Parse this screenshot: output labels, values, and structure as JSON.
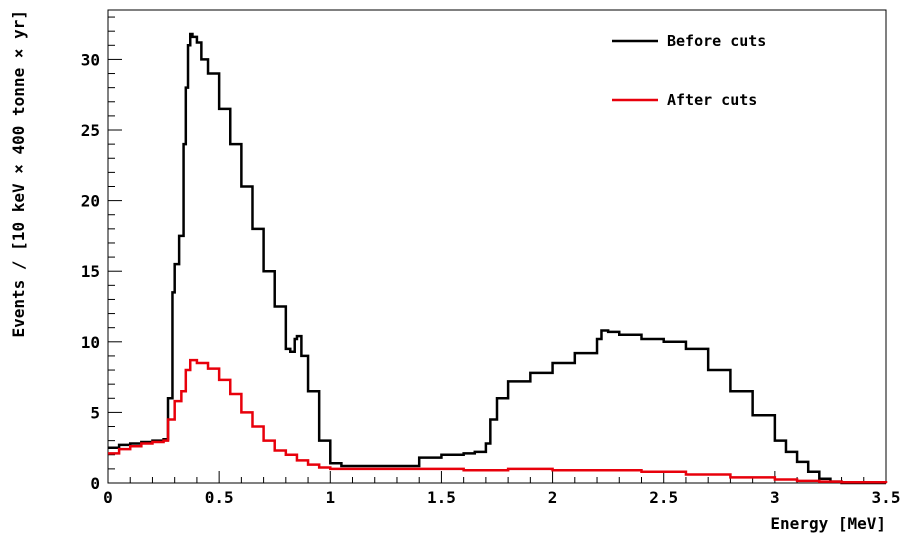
{
  "chart_data": {
    "type": "line",
    "title": "",
    "xlabel": "Energy [MeV]",
    "ylabel": "Events / [10 keV × 400 tonne × yr]",
    "xlim": [
      0,
      3.5
    ],
    "ylim": [
      0,
      33.5
    ],
    "grid": false,
    "legend_position": "top-right",
    "x_ticks": [
      "0",
      "0.5",
      "1",
      "1.5",
      "2",
      "2.5",
      "3",
      "3.5"
    ],
    "y_ticks": [
      "0",
      "5",
      "10",
      "15",
      "20",
      "25",
      "30"
    ],
    "series": [
      {
        "name": "Before cuts",
        "color": "#000000",
        "x": [
          0,
          0.05,
          0.1,
          0.15,
          0.2,
          0.25,
          0.27,
          0.29,
          0.3,
          0.32,
          0.34,
          0.35,
          0.36,
          0.37,
          0.38,
          0.4,
          0.42,
          0.45,
          0.5,
          0.55,
          0.6,
          0.65,
          0.7,
          0.75,
          0.8,
          0.82,
          0.84,
          0.85,
          0.87,
          0.9,
          0.95,
          1.0,
          1.05,
          1.2,
          1.35,
          1.4,
          1.5,
          1.6,
          1.65,
          1.7,
          1.72,
          1.75,
          1.8,
          1.9,
          2.0,
          2.1,
          2.2,
          2.22,
          2.25,
          2.3,
          2.4,
          2.5,
          2.6,
          2.7,
          2.8,
          2.9,
          3.0,
          3.05,
          3.1,
          3.15,
          3.2,
          3.25,
          3.3,
          3.35,
          3.4,
          3.5
        ],
        "values": [
          2.5,
          2.7,
          2.8,
          2.9,
          3.0,
          3.1,
          6.0,
          13.5,
          15.5,
          17.5,
          24.0,
          28.0,
          31.0,
          31.8,
          31.6,
          31.2,
          30.0,
          29.0,
          26.5,
          24.0,
          21.0,
          18.0,
          15.0,
          12.5,
          9.5,
          9.3,
          10.2,
          10.4,
          9.0,
          6.5,
          3.0,
          1.4,
          1.2,
          1.2,
          1.2,
          1.8,
          2.0,
          2.1,
          2.2,
          2.8,
          4.5,
          6.0,
          7.2,
          7.8,
          8.5,
          9.2,
          10.2,
          10.8,
          10.7,
          10.5,
          10.2,
          10.0,
          9.5,
          8.0,
          6.5,
          4.8,
          3.0,
          2.2,
          1.5,
          0.8,
          0.3,
          0.1,
          0.0,
          0.0,
          0.0,
          0.0
        ]
      },
      {
        "name": "After cuts",
        "color": "#e8000b",
        "x": [
          0,
          0.05,
          0.1,
          0.15,
          0.2,
          0.25,
          0.27,
          0.3,
          0.33,
          0.35,
          0.37,
          0.4,
          0.45,
          0.5,
          0.55,
          0.6,
          0.65,
          0.7,
          0.75,
          0.8,
          0.85,
          0.9,
          0.95,
          1.0,
          1.05,
          1.2,
          1.4,
          1.5,
          1.6,
          1.8,
          2.0,
          2.2,
          2.4,
          2.6,
          2.8,
          3.0,
          3.1,
          3.2,
          3.3,
          3.5
        ],
        "values": [
          2.1,
          2.4,
          2.6,
          2.8,
          2.9,
          3.0,
          4.5,
          5.8,
          6.5,
          8.0,
          8.7,
          8.5,
          8.1,
          7.3,
          6.3,
          5.0,
          4.0,
          3.0,
          2.3,
          2.0,
          1.6,
          1.3,
          1.1,
          1.0,
          1.0,
          1.0,
          1.0,
          1.0,
          0.9,
          1.0,
          0.9,
          0.9,
          0.8,
          0.6,
          0.4,
          0.25,
          0.15,
          0.1,
          0.05,
          0.0
        ]
      }
    ]
  }
}
